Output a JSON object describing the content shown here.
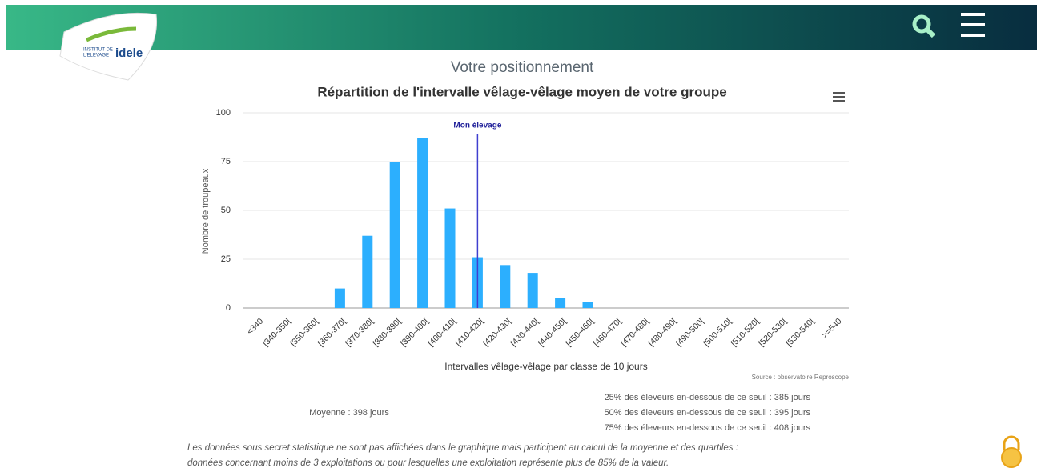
{
  "header": {
    "logo_line1": "INSTITUT DE",
    "logo_line2": "L'ELEVAGE",
    "logo_brand": "idele"
  },
  "section_title": "Votre positionnement",
  "chart_data": {
    "type": "bar",
    "title": "Répartition de l'intervalle vêlage-vêlage moyen de votre groupe",
    "y_label": "Nombre de troupeaux",
    "x_label": "Intervalles vêlage-vêlage par classe de 10 jours",
    "source": "Source : observatoire Reproscope",
    "categories": [
      "<340",
      "[340-350[",
      "[350-360[",
      "[360-370[",
      "[370-380[",
      "[380-390[",
      "[390-400[",
      "[400-410[",
      "[410-420[",
      "[420-430[",
      "[430-440[",
      "[440-450[",
      "[450-460[",
      "[460-470[",
      "[470-480[",
      "[480-490[",
      "[490-500[",
      "[500-510[",
      "[510-520[",
      "[520-530[",
      "[530-540[",
      ">=540"
    ],
    "values": [
      0,
      0,
      0,
      10,
      37,
      75,
      87,
      51,
      26,
      22,
      18,
      5,
      3,
      0,
      0,
      0,
      0,
      0,
      0,
      0,
      0,
      0
    ],
    "color": "#2caffe",
    "ylim": [
      0,
      100
    ],
    "yticks": [
      0,
      25,
      50,
      75,
      100
    ],
    "grid": true,
    "annotation": {
      "text": "Mon élevage",
      "category": "[410-420[",
      "color": "#3f3fcf"
    }
  },
  "stats": {
    "mean": "Moyenne : 398 jours",
    "quartiles": [
      "25% des éleveurs en-dessous de ce seuil : 385 jours",
      "50% des éleveurs en-dessous de ce seuil : 395 jours",
      "75% des éleveurs en-dessous de ce seuil : 408 jours"
    ]
  },
  "note": [
    "Les données sous secret statistique ne sont pas affichées dans le graphique mais participent au calcul de la moyenne et des quartiles :",
    "données concernant moins de 3 exploitations ou pour lesquelles une exploitation représente plus de 85% de la valeur."
  ]
}
